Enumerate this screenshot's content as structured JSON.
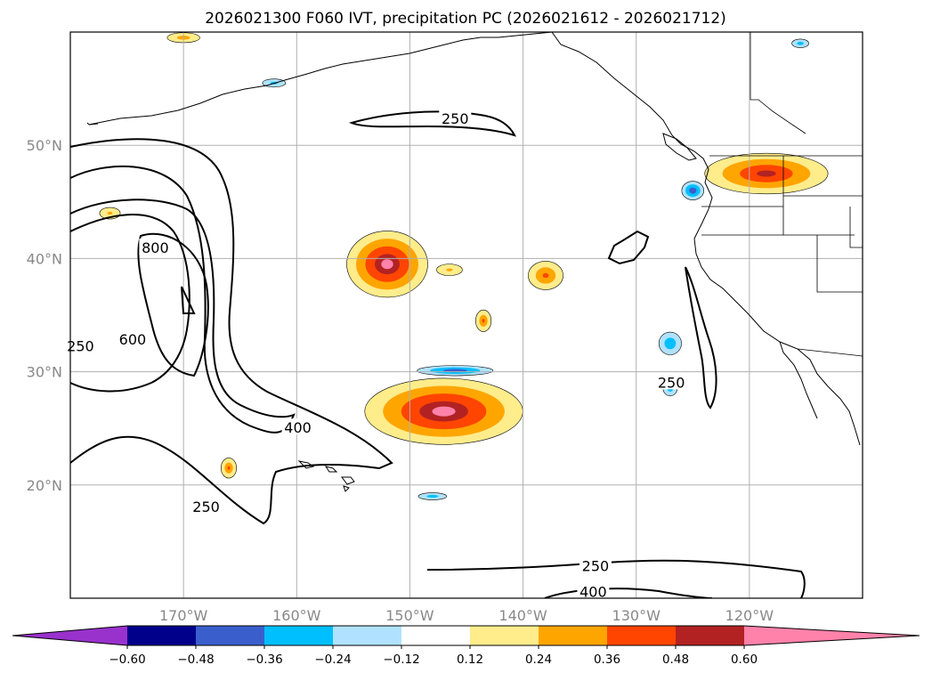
{
  "chart_data": {
    "type": "map-contour",
    "title": "2026021300 F060 IVT, precipitation PC (2026021612 - 2026021712)",
    "lon_range": [
      -180,
      -110
    ],
    "lat_range": [
      10,
      60
    ],
    "lon_ticks": [
      {
        "value": -170,
        "label": "170°W"
      },
      {
        "value": -160,
        "label": "160°W"
      },
      {
        "value": -150,
        "label": "150°W"
      },
      {
        "value": -140,
        "label": "140°W"
      },
      {
        "value": -130,
        "label": "130°W"
      },
      {
        "value": -120,
        "label": "120°W"
      }
    ],
    "lat_ticks": [
      {
        "value": 20,
        "label": "20°N"
      },
      {
        "value": 30,
        "label": "30°N"
      },
      {
        "value": 40,
        "label": "40°N"
      },
      {
        "value": 50,
        "label": "50°N"
      }
    ],
    "ivt_contour_levels": [
      250,
      400,
      600,
      800
    ],
    "ivt_contour_labels": [
      {
        "text": "250",
        "lon": -146.0,
        "lat": 52.3
      },
      {
        "text": "800",
        "lon": -172.5,
        "lat": 40.9
      },
      {
        "text": "600",
        "lon": -174.5,
        "lat": 32.8
      },
      {
        "text": "250",
        "lon": -179.1,
        "lat": 32.2
      },
      {
        "text": "400",
        "lon": -159.9,
        "lat": 25.0
      },
      {
        "text": "250",
        "lon": -168.0,
        "lat": 18.0
      },
      {
        "text": "250",
        "lon": -133.6,
        "lat": 12.8
      },
      {
        "text": "400",
        "lon": -133.8,
        "lat": 10.5
      },
      {
        "text": "250",
        "lon": -126.9,
        "lat": 29.0
      }
    ],
    "colorbar": {
      "boundaries": [
        -0.72,
        -0.6,
        -0.48,
        -0.36,
        -0.24,
        -0.12,
        0.12,
        0.24,
        0.36,
        0.48,
        0.6,
        0.72
      ],
      "colors": [
        "#9932cc",
        "#00008b",
        "#3a5fcd",
        "#00bfff",
        "#b0e2ff",
        "#ffffff",
        "#ffec8b",
        "#ffa500",
        "#ff4500",
        "#b22222",
        "#ff82ab"
      ],
      "extend_low_color": "#9932cc",
      "extend_high_color": "#ff82ab",
      "tick_values": [
        -0.6,
        -0.48,
        -0.36,
        -0.24,
        -0.12,
        0.12,
        0.24,
        0.36,
        0.48,
        0.6
      ],
      "tick_labels": [
        "−0.60",
        "−0.48",
        "−0.36",
        "−0.24",
        "−0.12",
        "0.12",
        "0.24",
        "0.36",
        "0.48",
        "0.60"
      ]
    },
    "precip_pc_anomalies": [
      {
        "name": "hawaii-ne",
        "center": [
          -147,
          26.5
        ],
        "radii": [
          8.6,
          3.6
        ],
        "peak": 0.62
      },
      {
        "name": "pnw-coast",
        "center": [
          -118.5,
          47.5
        ],
        "radii": [
          7.0,
          2.3
        ],
        "peak": 0.52
      },
      {
        "name": "mid-pacific-north",
        "center": [
          -152,
          39.5
        ],
        "radii": [
          4.4,
          3.6
        ],
        "peak": 0.62
      },
      {
        "name": "mid-pacific-streak",
        "center": [
          -138,
          38.5
        ],
        "radii": [
          2.2,
          1.8
        ],
        "peak": 0.38
      },
      {
        "name": "small-south",
        "center": [
          -143.5,
          34.5
        ],
        "radii": [
          1.0,
          1.4
        ],
        "peak": 0.36
      },
      {
        "name": "thin-streak",
        "center": [
          -146.5,
          39
        ],
        "radii": [
          2.0,
          0.9
        ],
        "peak": 0.26
      },
      {
        "name": "west-dateline",
        "center": [
          -176.5,
          44
        ],
        "radii": [
          1.6,
          0.9
        ],
        "peak": 0.26
      },
      {
        "name": "top-left",
        "center": [
          -170,
          59.5
        ],
        "radii": [
          2.3,
          0.7
        ],
        "peak": 0.3
      },
      {
        "name": "south-west",
        "center": [
          -166,
          21.5
        ],
        "radii": [
          1.0,
          1.3
        ],
        "peak": 0.36
      },
      {
        "name": "central-line",
        "center": [
          -146,
          30.1
        ],
        "radii": [
          4.5,
          0.6
        ],
        "peak": -0.45
      },
      {
        "name": "ne-pacific-blue",
        "center": [
          -127,
          32.5
        ],
        "radii": [
          1.5,
          1.5
        ],
        "peak": -0.34
      },
      {
        "name": "coast-blue",
        "center": [
          -125,
          46
        ],
        "radii": [
          1.3,
          1.1
        ],
        "peak": -0.46
      },
      {
        "name": "baja-blue",
        "center": [
          -127,
          28.5
        ],
        "radii": [
          1.0,
          1.0
        ],
        "peak": -0.3
      },
      {
        "name": "hawaii-blue",
        "center": [
          -148,
          19
        ],
        "radii": [
          2.0,
          0.5
        ],
        "peak": -0.3
      },
      {
        "name": "alaska-blue",
        "center": [
          -162,
          55.5
        ],
        "radii": [
          1.7,
          0.6
        ],
        "peak": -0.28
      },
      {
        "name": "north-blue",
        "center": [
          -115.5,
          59
        ],
        "radii": [
          1.2,
          0.6
        ],
        "peak": -0.3
      }
    ]
  }
}
